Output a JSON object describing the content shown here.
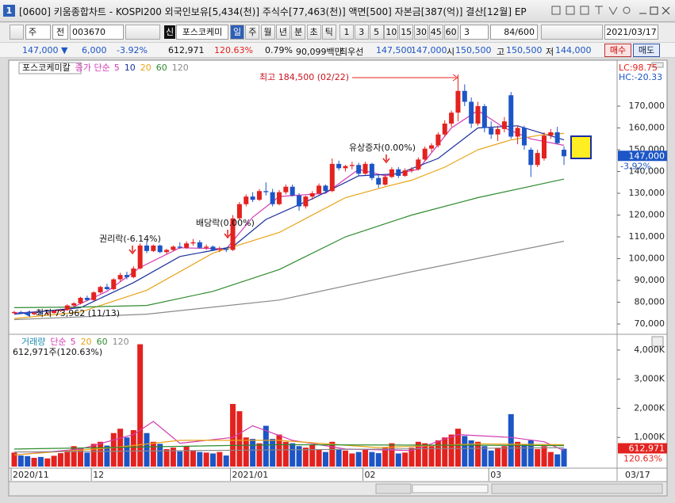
{
  "window": {
    "number": "1",
    "title": "[0600] 키움종합차트 - KOSPI200 외국인보유[5,434(천)] 주식수[77,463(천)] 액면[500] 자본금[387(억)] 결산[12월] EP"
  },
  "toolbar": {
    "period": "주",
    "mode": "전",
    "code": "003670",
    "badge": "신",
    "name": "포스코케미",
    "intervals": [
      "일",
      "주",
      "월",
      "년",
      "분",
      "초",
      "틱"
    ],
    "minutes": [
      "1",
      "3",
      "5",
      "10",
      "15",
      "30",
      "45",
      "60"
    ],
    "count_select": "3",
    "count": "84/600",
    "date": "2021/03/17"
  },
  "quote": {
    "price": "147,000 ▼",
    "change": "6,000",
    "change_rate": "-3.92%",
    "volume": "612,971",
    "volume_rate": "120.63%",
    "turnover": "0.79%",
    "amount": "90,099백만",
    "best_label": "최우선",
    "ask": "147,500",
    "bid": "147,000",
    "open_label": "시",
    "open": "150,500",
    "high_label": "고",
    "high": "150,500",
    "low_label": "저",
    "low": "144,000",
    "buy": "매수",
    "sell": "매도"
  },
  "chart_data": [
    {
      "type": "candlestick",
      "title": "포스코케미칼",
      "legend_label": "종가 단순",
      "up_color": "#e3221f",
      "down_color": "#1c55c6",
      "open": [
        75000,
        75500,
        74800,
        74500,
        75200,
        74800,
        75000,
        76000,
        76500,
        78500,
        79500,
        82000,
        81000,
        84500,
        87000,
        86000,
        90500,
        92500,
        91500,
        95500,
        106000,
        103500,
        106000,
        103000,
        104000,
        105500,
        105000,
        107000,
        107500,
        105000,
        105500,
        104000,
        104500,
        104000,
        118500,
        125000,
        128500,
        127000,
        131000,
        130500,
        125000,
        130500,
        133000,
        129000,
        124000,
        128500,
        130000,
        133500,
        131000,
        143500,
        141500,
        142500,
        143000,
        139000,
        143500,
        137000,
        134000,
        137500,
        141000,
        138000,
        140500,
        141000,
        145500,
        150500,
        152000,
        157000,
        162000,
        167000,
        177000,
        172000,
        162000,
        170000,
        160000,
        157000,
        159500,
        175000,
        156000,
        160000,
        150000,
        143000,
        146000,
        156500,
        158000,
        150000
      ],
      "high": [
        76000,
        76000,
        75000,
        75500,
        75800,
        75500,
        76500,
        77000,
        79000,
        80000,
        82500,
        83000,
        85000,
        87500,
        88500,
        91000,
        93500,
        94000,
        96500,
        107000,
        108000,
        106500,
        106500,
        104500,
        106000,
        107500,
        108000,
        109000,
        108500,
        106500,
        106000,
        105500,
        105000,
        120000,
        126000,
        129500,
        130500,
        132000,
        135000,
        132000,
        131500,
        134000,
        134000,
        130000,
        129000,
        131000,
        134500,
        134000,
        146000,
        145000,
        143000,
        144500,
        144000,
        144500,
        144000,
        138500,
        138500,
        142000,
        142000,
        141500,
        142000,
        146500,
        151500,
        153000,
        158000,
        163500,
        168000,
        184500,
        180000,
        174000,
        172000,
        171000,
        163000,
        161000,
        165000,
        176500,
        161000,
        161000,
        151000,
        150000,
        158000,
        159500,
        160500,
        151500
      ],
      "low": [
        74500,
        74500,
        73962,
        74000,
        74500,
        74200,
        74800,
        75500,
        76000,
        77500,
        79000,
        80500,
        80500,
        84000,
        85500,
        85500,
        89500,
        90500,
        91000,
        95000,
        102500,
        103000,
        102500,
        102000,
        103500,
        104500,
        104500,
        106000,
        104500,
        104000,
        103500,
        103000,
        103000,
        103500,
        118000,
        124000,
        126000,
        126500,
        129000,
        124000,
        124500,
        129500,
        128500,
        122000,
        123000,
        127000,
        129500,
        130000,
        130500,
        140500,
        140000,
        141000,
        138000,
        138500,
        136000,
        132500,
        133500,
        137000,
        137000,
        137500,
        139500,
        140500,
        145000,
        149000,
        151000,
        156000,
        160500,
        163000,
        170000,
        160000,
        161000,
        158000,
        155000,
        154000,
        158000,
        155000,
        152500,
        150000,
        137500,
        142000,
        145000,
        155000,
        152500,
        143000
      ],
      "close": [
        75500,
        74800,
        74500,
        75200,
        74800,
        75000,
        76000,
        76500,
        78500,
        79500,
        82000,
        81000,
        84500,
        87000,
        86000,
        90500,
        92500,
        91500,
        95500,
        106000,
        103500,
        106000,
        103000,
        104000,
        105500,
        105000,
        107000,
        107500,
        105000,
        105500,
        104000,
        104500,
        104000,
        118500,
        125000,
        128500,
        127000,
        131000,
        130500,
        125000,
        130500,
        133000,
        129000,
        124000,
        128500,
        130000,
        133500,
        131000,
        143500,
        141500,
        142500,
        143000,
        139000,
        143500,
        137000,
        134000,
        137500,
        141000,
        138000,
        140500,
        141000,
        145500,
        150500,
        152000,
        157000,
        162000,
        167000,
        177000,
        172000,
        162000,
        170000,
        160000,
        157000,
        159500,
        163000,
        156000,
        160000,
        152000,
        143000,
        148500,
        156500,
        158000,
        153000,
        147000
      ],
      "series": [
        {
          "name": "5",
          "color": "#d23cb4",
          "x": [
            0,
            8,
            14,
            19,
            25,
            32,
            36,
            40,
            47,
            52,
            56,
            61,
            66,
            70,
            74,
            78,
            83
          ],
          "values": [
            75000,
            76500,
            85000,
            96000,
            105000,
            104500,
            119000,
            128500,
            130000,
            141000,
            138000,
            141000,
            160000,
            168000,
            160000,
            155000,
            152000
          ]
        },
        {
          "name": "10",
          "color": "#1a2f9e",
          "x": [
            0,
            10,
            18,
            25,
            33,
            38,
            45,
            52,
            58,
            64,
            70,
            76,
            83
          ],
          "values": [
            74500,
            77500,
            89000,
            101000,
            105500,
            118000,
            127500,
            138000,
            139000,
            146000,
            160000,
            161000,
            154500
          ]
        },
        {
          "name": "20",
          "color": "#e8a317",
          "x": [
            0,
            10,
            20,
            30,
            40,
            50,
            56,
            60,
            65,
            70,
            75,
            80,
            83
          ],
          "values": [
            72500,
            75500,
            85500,
            102500,
            112000,
            128000,
            133000,
            136000,
            142000,
            150000,
            154500,
            157000,
            157500
          ]
        },
        {
          "name": "60",
          "color": "#2e8b2e",
          "x": [
            0,
            10,
            20,
            30,
            40,
            50,
            60,
            70,
            83
          ],
          "values": [
            77500,
            77800,
            78500,
            85000,
            95000,
            110000,
            120000,
            128000,
            136500
          ]
        },
        {
          "name": "120",
          "color": "#8a8a8a",
          "x": [
            0,
            20,
            40,
            60,
            83
          ],
          "values": [
            72000,
            74500,
            81000,
            94000,
            108000
          ]
        }
      ],
      "ylim": [
        66000,
        186000
      ],
      "yticks": [
        {
          "value": 70000,
          "label": "70,000"
        },
        {
          "value": 80000,
          "label": "80,000"
        },
        {
          "value": 90000,
          "label": "90,000"
        },
        {
          "value": 100000,
          "label": "100,000"
        },
        {
          "value": 110000,
          "label": "110,000"
        },
        {
          "value": 120000,
          "label": "120,000"
        },
        {
          "value": 130000,
          "label": "130,000"
        },
        {
          "value": 140000,
          "label": "140,000"
        },
        {
          "value": 150000,
          "label": "150,000"
        },
        {
          "value": 160000,
          "label": "160,000"
        },
        {
          "value": 170000,
          "label": "170,000"
        }
      ],
      "last_price": {
        "value": 147000,
        "label": "147,000"
      },
      "last_rate": "-3.92%",
      "lc_label": "LC:98.75",
      "hc_label": "HC:-20.33",
      "annotations": [
        "최고 184,500 (02/22)",
        "최저 73,962 (11/13)",
        "권리락(-6.14%)",
        "배당락(0.00%)",
        "유상증자(0.00%)"
      ]
    },
    {
      "type": "bar",
      "title": "거래량",
      "legend_label": "단순",
      "header": "612,971주(120.63%)",
      "categories": [
        "2020/11",
        null,
        null,
        null,
        null,
        null,
        null,
        null,
        null,
        null,
        null,
        null,
        "12",
        null,
        null,
        null,
        null,
        null,
        null,
        null,
        null,
        null,
        null,
        null,
        null,
        null,
        null,
        null,
        null,
        null,
        null,
        null,
        null,
        "2021/01",
        null,
        null,
        null,
        null,
        null,
        null,
        null,
        null,
        null,
        null,
        null,
        null,
        null,
        null,
        null,
        null,
        null,
        null,
        null,
        "02",
        null,
        null,
        null,
        null,
        null,
        null,
        null,
        null,
        null,
        null,
        null,
        null,
        null,
        null,
        null,
        null,
        null,
        null,
        "03",
        null,
        null,
        null,
        null,
        null,
        null,
        null,
        null,
        null,
        null,
        null
      ],
      "x_end_label": "03/17",
      "values": [
        480,
        380,
        360,
        300,
        330,
        280,
        370,
        460,
        550,
        700,
        620,
        480,
        780,
        850,
        720,
        1150,
        1300,
        1000,
        1250,
        4200,
        1150,
        850,
        780,
        600,
        650,
        520,
        700,
        560,
        500,
        480,
        450,
        500,
        380,
        2150,
        1900,
        1000,
        950,
        800,
        1400,
        950,
        1100,
        850,
        800,
        700,
        650,
        750,
        580,
        500,
        850,
        600,
        550,
        450,
        500,
        600,
        500,
        460,
        650,
        800,
        450,
        480,
        650,
        850,
        800,
        700,
        900,
        1000,
        1100,
        1300,
        1050,
        900,
        850,
        700,
        550,
        650,
        700,
        1800,
        850,
        750,
        900,
        600,
        700,
        500,
        420,
        612.971
      ],
      "series": [
        {
          "name": "5",
          "color": "#d23cb4",
          "x": [
            0,
            10,
            18,
            21,
            25,
            33,
            36,
            42,
            50,
            60,
            67,
            75,
            80,
            83
          ],
          "values": [
            400,
            600,
            1100,
            1550,
            800,
            1000,
            1400,
            900,
            600,
            550,
            1100,
            1000,
            850,
            550
          ]
        },
        {
          "name": "20",
          "color": "#e8a317",
          "x": [
            0,
            15,
            25,
            40,
            55,
            70,
            83
          ],
          "values": [
            400,
            650,
            900,
            900,
            650,
            780,
            750
          ]
        },
        {
          "name": "60",
          "color": "#2e8b2e",
          "x": [
            0,
            40,
            83
          ],
          "values": [
            600,
            750,
            720
          ]
        },
        {
          "name": "120",
          "color": "#8a8a8a",
          "x": [
            0,
            83
          ],
          "values": [
            500,
            650
          ]
        }
      ],
      "ylim": [
        0,
        4460
      ],
      "yticks": [
        {
          "value": 1000,
          "label": "1,000K"
        },
        {
          "value": 2000,
          "label": "2,000K"
        },
        {
          "value": 3000,
          "label": "3,000K"
        },
        {
          "value": 4000,
          "label": "4,000K"
        }
      ],
      "last_value": {
        "value": 612.971,
        "label": "612,971"
      },
      "last_rate": "120.63%"
    }
  ]
}
